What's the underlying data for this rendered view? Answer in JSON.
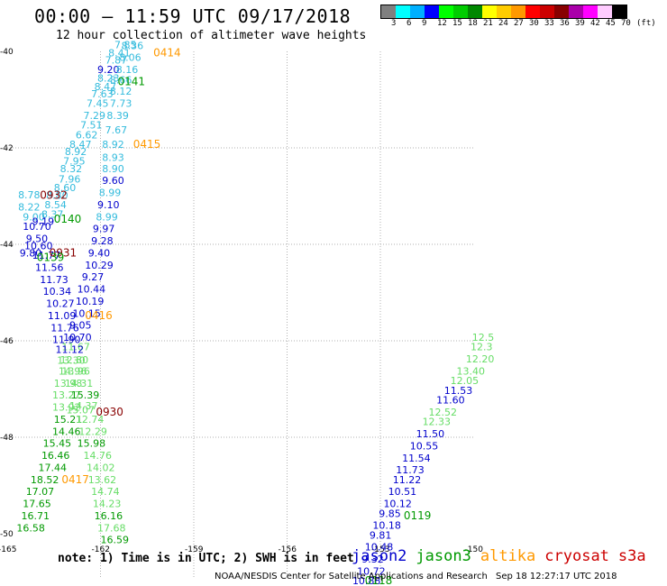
{
  "title": "00:00 – 11:59 UTC 09/17/2018",
  "subtitle": "12 hour collection of altimeter wave heights",
  "legend": {
    "colors": [
      "#808080",
      "#00ffff",
      "#00b0ff",
      "#0000ff",
      "#00ff00",
      "#00cc00",
      "#008800",
      "#ffff00",
      "#ffcc00",
      "#ff9900",
      "#ff0000",
      "#cc0000",
      "#880000",
      "#aa00aa",
      "#ff00ff",
      "#ffccff",
      "#000000"
    ],
    "labels": [
      "3",
      "6",
      "9",
      "12",
      "15",
      "18",
      "21",
      "24",
      "27",
      "30",
      "33",
      "36",
      "39",
      "42",
      "45",
      "70",
      "(ft)"
    ]
  },
  "axes": {
    "lon_ticks": [
      "-165",
      "-162",
      "-159",
      "-156",
      "-153",
      "-150"
    ],
    "lat_ticks": [
      "-40",
      "-42",
      "-44",
      "-46",
      "-48",
      "-50"
    ]
  },
  "series_colors": {
    "jason2": "#0000cc",
    "jason3": "#009900",
    "altika": "#ff9900",
    "cryosat": "#cc0000",
    "s3a": "#cc0000",
    "s3a_light": "#33bbdd",
    "altika_light": "#66dd66",
    "cryo_dark": "#880000"
  },
  "readings": [
    {
      "t": "7.85",
      "lon": -161.55,
      "lat": -39.93,
      "c": "s3a_light"
    },
    {
      "t": "8.36",
      "lon": -161.33,
      "lat": -39.95,
      "c": "s3a_light"
    },
    {
      "t": "8.41",
      "lon": -161.75,
      "lat": -40.1,
      "c": "s3a_light"
    },
    {
      "t": "8.06",
      "lon": -161.4,
      "lat": -40.2,
      "c": "s3a_light"
    },
    {
      "t": "7.87",
      "lon": -161.85,
      "lat": -40.25,
      "c": "s3a_light"
    },
    {
      "t": "9.20",
      "lon": -162.1,
      "lat": -40.45,
      "c": "jason2"
    },
    {
      "t": "8.16",
      "lon": -161.5,
      "lat": -40.45,
      "c": "s3a_light"
    },
    {
      "t": "8.23",
      "lon": -162.1,
      "lat": -40.63,
      "c": "s3a_light"
    },
    {
      "t": "8.66",
      "lon": -161.7,
      "lat": -40.66,
      "c": "s3a_light"
    },
    {
      "t": "8.47",
      "lon": -162.2,
      "lat": -40.8,
      "c": "s3a_light"
    },
    {
      "t": "8.12",
      "lon": -161.7,
      "lat": -40.9,
      "c": "s3a_light"
    },
    {
      "t": "7.63",
      "lon": -162.3,
      "lat": -40.95,
      "c": "s3a_light"
    },
    {
      "t": "7.73",
      "lon": -161.7,
      "lat": -41.15,
      "c": "s3a_light"
    },
    {
      "t": "7.45",
      "lon": -162.45,
      "lat": -41.15,
      "c": "s3a_light"
    },
    {
      "t": "8.39",
      "lon": -161.8,
      "lat": -41.4,
      "c": "s3a_light"
    },
    {
      "t": "7.29",
      "lon": -162.55,
      "lat": -41.4,
      "c": "s3a_light"
    },
    {
      "t": "7.51",
      "lon": -162.65,
      "lat": -41.6,
      "c": "s3a_light"
    },
    {
      "t": "7.67",
      "lon": -161.85,
      "lat": -41.7,
      "c": "s3a_light"
    },
    {
      "t": "6.62",
      "lon": -162.8,
      "lat": -41.8,
      "c": "s3a_light"
    },
    {
      "t": "8.47",
      "lon": -163.0,
      "lat": -42.0,
      "c": "s3a_light"
    },
    {
      "t": "8.92",
      "lon": -161.95,
      "lat": -42.0,
      "c": "s3a_light"
    },
    {
      "t": "8.92",
      "lon": -163.15,
      "lat": -42.15,
      "c": "s3a_light"
    },
    {
      "t": "8.93",
      "lon": -161.95,
      "lat": -42.27,
      "c": "s3a_light"
    },
    {
      "t": "7.95",
      "lon": -163.2,
      "lat": -42.35,
      "c": "s3a_light"
    },
    {
      "t": "8.32",
      "lon": -163.3,
      "lat": -42.5,
      "c": "s3a_light"
    },
    {
      "t": "8.90",
      "lon": -161.95,
      "lat": -42.5,
      "c": "s3a_light"
    },
    {
      "t": "7.96",
      "lon": -163.35,
      "lat": -42.72,
      "c": "s3a_light"
    },
    {
      "t": "9.60",
      "lon": -161.95,
      "lat": -42.75,
      "c": "jason2"
    },
    {
      "t": "8.60",
      "lon": -163.5,
      "lat": -42.9,
      "c": "s3a_light"
    },
    {
      "t": "8.78",
      "lon": -164.65,
      "lat": -43.05,
      "c": "s3a_light"
    },
    {
      "t": "8.80",
      "lon": -163.75,
      "lat": -43.06,
      "c": "s3a_light"
    },
    {
      "t": "8.99",
      "lon": -162.05,
      "lat": -43.0,
      "c": "s3a_light"
    },
    {
      "t": "8.54",
      "lon": -163.8,
      "lat": -43.25,
      "c": "s3a_light"
    },
    {
      "t": "8.22",
      "lon": -164.65,
      "lat": -43.3,
      "c": "s3a_light"
    },
    {
      "t": "9.10",
      "lon": -162.1,
      "lat": -43.25,
      "c": "jason2"
    },
    {
      "t": "8.37",
      "lon": -163.9,
      "lat": -43.45,
      "c": "s3a_light"
    },
    {
      "t": "9.00",
      "lon": -164.5,
      "lat": -43.5,
      "c": "s3a_light"
    },
    {
      "t": "8.99",
      "lon": -162.15,
      "lat": -43.5,
      "c": "s3a_light"
    },
    {
      "t": "9.19",
      "lon": -164.2,
      "lat": -43.6,
      "c": "jason2"
    },
    {
      "t": "10.70",
      "lon": -164.5,
      "lat": -43.7,
      "c": "jason2"
    },
    {
      "t": "9.97",
      "lon": -162.25,
      "lat": -43.75,
      "c": "jason2"
    },
    {
      "t": "9.50",
      "lon": -164.4,
      "lat": -43.95,
      "c": "jason2"
    },
    {
      "t": "9.28",
      "lon": -162.3,
      "lat": -44.0,
      "c": "jason2"
    },
    {
      "t": "10.60",
      "lon": -164.45,
      "lat": -44.1,
      "c": "jason2"
    },
    {
      "t": "9.40",
      "lon": -162.4,
      "lat": -44.25,
      "c": "jason2"
    },
    {
      "t": "9.80",
      "lon": -164.6,
      "lat": -44.25,
      "c": "jason2"
    },
    {
      "t": "11.77",
      "lon": -164.2,
      "lat": -44.3,
      "c": "jason2"
    },
    {
      "t": "10.29",
      "lon": -162.5,
      "lat": -44.5,
      "c": "jason2"
    },
    {
      "t": "11.56",
      "lon": -164.1,
      "lat": -44.55,
      "c": "jason2"
    },
    {
      "t": "9.27",
      "lon": -162.6,
      "lat": -44.75,
      "c": "jason2"
    },
    {
      "t": "11.73",
      "lon": -163.95,
      "lat": -44.8,
      "c": "jason2"
    },
    {
      "t": "10.44",
      "lon": -162.75,
      "lat": -45.0,
      "c": "jason2"
    },
    {
      "t": "10.34",
      "lon": -163.85,
      "lat": -45.05,
      "c": "jason2"
    },
    {
      "t": "10.19",
      "lon": -162.8,
      "lat": -45.25,
      "c": "jason2"
    },
    {
      "t": "10.27",
      "lon": -163.75,
      "lat": -45.3,
      "c": "jason2"
    },
    {
      "t": "10.15",
      "lon": -162.9,
      "lat": -45.5,
      "c": "jason2"
    },
    {
      "t": "11.09",
      "lon": -163.7,
      "lat": -45.55,
      "c": "jason2"
    },
    {
      "t": "9.05",
      "lon": -163.0,
      "lat": -45.75,
      "c": "jason2"
    },
    {
      "t": "11.76",
      "lon": -163.6,
      "lat": -45.8,
      "c": "jason2"
    },
    {
      "t": "10.70",
      "lon": -163.2,
      "lat": -46.0,
      "c": "jason2"
    },
    {
      "t": "11.90",
      "lon": -163.55,
      "lat": -46.05,
      "c": "jason2"
    },
    {
      "t": "11.67",
      "lon": -163.25,
      "lat": -46.2,
      "c": "altika_light"
    },
    {
      "t": "11.12",
      "lon": -163.45,
      "lat": -46.25,
      "c": "jason2"
    },
    {
      "t": "12.80",
      "lon": -163.3,
      "lat": -46.47,
      "c": "altika_light"
    },
    {
      "t": "13.30",
      "lon": -163.4,
      "lat": -46.48,
      "c": "altika_light"
    },
    {
      "t": "14.96",
      "lon": -163.35,
      "lat": -46.7,
      "c": "altika_light"
    },
    {
      "t": "13.96",
      "lon": -163.25,
      "lat": -46.7,
      "c": "altika_light"
    },
    {
      "t": "13.98",
      "lon": -163.5,
      "lat": -46.95,
      "c": "altika_light"
    },
    {
      "t": "14.31",
      "lon": -163.15,
      "lat": -46.95,
      "c": "altika_light"
    },
    {
      "t": "13.27",
      "lon": -163.55,
      "lat": -47.2,
      "c": "altika_light"
    },
    {
      "t": "15.39",
      "lon": -162.95,
      "lat": -47.2,
      "c": "jason3"
    },
    {
      "t": "14.37",
      "lon": -163.0,
      "lat": -47.42,
      "c": "altika_light"
    },
    {
      "t": "13.92",
      "lon": -163.55,
      "lat": -47.45,
      "c": "altika_light"
    },
    {
      "t": "15.07",
      "lon": -163.1,
      "lat": -47.5,
      "c": "altika_light"
    },
    {
      "t": "15.21",
      "lon": -163.5,
      "lat": -47.7,
      "c": "jason3"
    },
    {
      "t": "12.74",
      "lon": -162.8,
      "lat": -47.7,
      "c": "altika_light"
    },
    {
      "t": "14.46",
      "lon": -163.55,
      "lat": -47.95,
      "c": "jason3"
    },
    {
      "t": "12.29",
      "lon": -162.7,
      "lat": -47.95,
      "c": "altika_light"
    },
    {
      "t": "15.45",
      "lon": -163.85,
      "lat": -48.2,
      "c": "jason3"
    },
    {
      "t": "15.98",
      "lon": -162.75,
      "lat": -48.2,
      "c": "jason3"
    },
    {
      "t": "16.46",
      "lon": -163.9,
      "lat": -48.45,
      "c": "jason3"
    },
    {
      "t": "14.76",
      "lon": -162.55,
      "lat": -48.45,
      "c": "altika_light"
    },
    {
      "t": "17.44",
      "lon": -164.0,
      "lat": -48.7,
      "c": "jason3"
    },
    {
      "t": "14.02",
      "lon": -162.45,
      "lat": -48.7,
      "c": "altika_light"
    },
    {
      "t": "18.52",
      "lon": -164.25,
      "lat": -48.95,
      "c": "jason3"
    },
    {
      "t": "13.62",
      "lon": -162.4,
      "lat": -48.95,
      "c": "altika_light"
    },
    {
      "t": "17.07",
      "lon": -164.4,
      "lat": -49.2,
      "c": "jason3"
    },
    {
      "t": "14.74",
      "lon": -162.3,
      "lat": -49.2,
      "c": "altika_light"
    },
    {
      "t": "17.65",
      "lon": -164.5,
      "lat": -49.45,
      "c": "jason3"
    },
    {
      "t": "14.23",
      "lon": -162.25,
      "lat": -49.45,
      "c": "altika_light"
    },
    {
      "t": "16.71",
      "lon": -164.55,
      "lat": -49.7,
      "c": "jason3"
    },
    {
      "t": "16.16",
      "lon": -162.2,
      "lat": -49.7,
      "c": "jason3"
    },
    {
      "t": "16.58",
      "lon": -164.7,
      "lat": -49.95,
      "c": "jason3"
    },
    {
      "t": "17.68",
      "lon": -162.1,
      "lat": -49.95,
      "c": "altika_light"
    },
    {
      "t": "16.59",
      "lon": -162.0,
      "lat": -50.2,
      "c": "jason3"
    },
    {
      "t": "12.5",
      "lon": -150.05,
      "lat": -46.0,
      "c": "altika_light"
    },
    {
      "t": "12.3",
      "lon": -150.1,
      "lat": -46.2,
      "c": "altika_light"
    },
    {
      "t": "12.20",
      "lon": -150.25,
      "lat": -46.45,
      "c": "altika_light"
    },
    {
      "t": "13.40",
      "lon": -150.55,
      "lat": -46.7,
      "c": "altika_light"
    },
    {
      "t": "12.05",
      "lon": -150.75,
      "lat": -46.9,
      "c": "altika_light"
    },
    {
      "t": "11.53",
      "lon": -150.95,
      "lat": -47.1,
      "c": "jason2"
    },
    {
      "t": "11.60",
      "lon": -151.2,
      "lat": -47.3,
      "c": "jason2"
    },
    {
      "t": "12.52",
      "lon": -151.45,
      "lat": -47.55,
      "c": "altika_light"
    },
    {
      "t": "12.33",
      "lon": -151.65,
      "lat": -47.75,
      "c": "altika_light"
    },
    {
      "t": "11.50",
      "lon": -151.85,
      "lat": -48.0,
      "c": "jason2"
    },
    {
      "t": "10.55",
      "lon": -152.05,
      "lat": -48.25,
      "c": "jason2"
    },
    {
      "t": "11.54",
      "lon": -152.3,
      "lat": -48.5,
      "c": "jason2"
    },
    {
      "t": "11.73",
      "lon": -152.5,
      "lat": -48.75,
      "c": "jason2"
    },
    {
      "t": "11.22",
      "lon": -152.6,
      "lat": -48.95,
      "c": "jason2"
    },
    {
      "t": "10.51",
      "lon": -152.75,
      "lat": -49.2,
      "c": "jason2"
    },
    {
      "t": "10.12",
      "lon": -152.9,
      "lat": -49.45,
      "c": "jason2"
    },
    {
      "t": "9.85",
      "lon": -153.05,
      "lat": -49.65,
      "c": "jason2"
    },
    {
      "t": "10.18",
      "lon": -153.25,
      "lat": -49.9,
      "c": "jason2"
    },
    {
      "t": "9.81",
      "lon": -153.35,
      "lat": -50.1,
      "c": "jason2"
    },
    {
      "t": "10.48",
      "lon": -153.5,
      "lat": -50.35,
      "c": "jason2"
    },
    {
      "t": "9.32",
      "lon": -153.6,
      "lat": -50.6,
      "c": "jason2"
    },
    {
      "t": "10.72",
      "lon": -153.75,
      "lat": -50.85,
      "c": "jason2"
    },
    {
      "t": "10.88",
      "lon": -153.9,
      "lat": -51.05,
      "c": "jason2"
    }
  ],
  "times": [
    {
      "t": "0414",
      "lon": -160.3,
      "lat": -40.1,
      "c": "altika"
    },
    {
      "t": "0141",
      "lon": -161.45,
      "lat": -40.7,
      "c": "jason3"
    },
    {
      "t": "0415",
      "lon": -160.95,
      "lat": -42.0,
      "c": "altika"
    },
    {
      "t": "0932",
      "lon": -163.95,
      "lat": -43.06,
      "c": "cryo_dark"
    },
    {
      "t": "0140",
      "lon": -163.5,
      "lat": -43.55,
      "c": "jason3"
    },
    {
      "t": "0931",
      "lon": -163.65,
      "lat": -44.25,
      "c": "cryo_dark"
    },
    {
      "t": "0139",
      "lon": -164.05,
      "lat": -44.35,
      "c": "jason3"
    },
    {
      "t": "0416",
      "lon": -162.5,
      "lat": -45.55,
      "c": "altika"
    },
    {
      "t": "0930",
      "lon": -162.15,
      "lat": -47.55,
      "c": "cryo_dark"
    },
    {
      "t": "0417",
      "lon": -163.25,
      "lat": -48.95,
      "c": "altika"
    },
    {
      "t": "0119",
      "lon": -152.25,
      "lat": -49.7,
      "c": "jason3"
    },
    {
      "t": "0118",
      "lon": -153.5,
      "lat": -51.05,
      "c": "jason3"
    }
  ],
  "note": "note: 1) Time is in UTC; 2) SWH is in feet",
  "satellites": [
    {
      "name": "jason2",
      "color": "#0000cc"
    },
    {
      "name": "jason3",
      "color": "#009900"
    },
    {
      "name": "altika",
      "color": "#ff9900"
    },
    {
      "name": "cryosat",
      "color": "#cc0000"
    },
    {
      "name": "s3a",
      "color": "#cc0000"
    }
  ],
  "credit": "NOAA/NESDIS Center for Satellite Applications and Research",
  "stamp": "Sep 18 12:27:17 UTC 2018"
}
